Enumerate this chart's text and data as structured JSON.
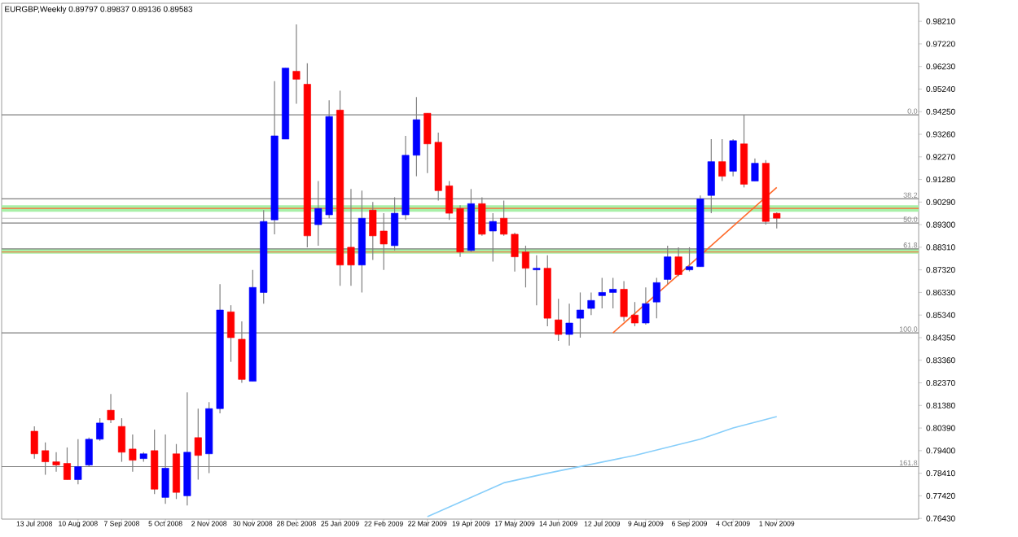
{
  "chart_data": {
    "type": "candlestick",
    "title": "EURGBP,Weekly  0.89797 0.89837 0.89136 0.89583",
    "x": [
      "2008-07-13",
      "2008-07-20",
      "2008-07-27",
      "2008-08-03",
      "2008-08-10",
      "2008-08-17",
      "2008-08-24",
      "2008-08-31",
      "2008-09-07",
      "2008-09-14",
      "2008-09-21",
      "2008-09-28",
      "2008-10-05",
      "2008-10-12",
      "2008-10-19",
      "2008-10-26",
      "2008-11-02",
      "2008-11-09",
      "2008-11-16",
      "2008-11-23",
      "2008-11-30",
      "2008-12-07",
      "2008-12-14",
      "2008-12-21",
      "2008-12-28",
      "2009-01-04",
      "2009-01-11",
      "2009-01-18",
      "2009-01-25",
      "2009-02-01",
      "2009-02-08",
      "2009-02-15",
      "2009-02-22",
      "2009-03-01",
      "2009-03-08",
      "2009-03-15",
      "2009-03-22",
      "2009-03-29",
      "2009-04-05",
      "2009-04-12",
      "2009-04-19",
      "2009-04-26",
      "2009-05-03",
      "2009-05-10",
      "2009-05-17",
      "2009-05-24",
      "2009-05-31",
      "2009-06-07",
      "2009-06-14",
      "2009-06-21",
      "2009-06-28",
      "2009-07-05",
      "2009-07-12",
      "2009-07-19",
      "2009-07-26",
      "2009-08-02",
      "2009-08-09",
      "2009-08-16",
      "2009-08-23",
      "2009-08-30",
      "2009-09-06",
      "2009-09-13",
      "2009-09-20",
      "2009-09-27",
      "2009-10-04",
      "2009-10-11",
      "2009-10-18",
      "2009-10-25",
      "2009-11-01"
    ],
    "ohlc": [
      [
        0.8025,
        0.8046,
        0.7905,
        0.7926
      ],
      [
        0.794,
        0.7976,
        0.7834,
        0.7891
      ],
      [
        0.7891,
        0.7933,
        0.7848,
        0.7877
      ],
      [
        0.7884,
        0.7954,
        0.7813,
        0.7813
      ],
      [
        0.7813,
        0.799,
        0.7792,
        0.787
      ],
      [
        0.7877,
        0.7997,
        0.787,
        0.799
      ],
      [
        0.799,
        0.8082,
        0.7983,
        0.8061
      ],
      [
        0.8117,
        0.8188,
        0.8061,
        0.8075
      ],
      [
        0.8046,
        0.8082,
        0.7891,
        0.7933
      ],
      [
        0.7947,
        0.8011,
        0.7848,
        0.7898
      ],
      [
        0.7905,
        0.7933,
        0.7891,
        0.7926
      ],
      [
        0.794,
        0.8032,
        0.775,
        0.7771
      ],
      [
        0.7735,
        0.8011,
        0.7707,
        0.7863
      ],
      [
        0.7926,
        0.7969,
        0.7728,
        0.7757
      ],
      [
        0.7742,
        0.8195,
        0.77,
        0.7933
      ],
      [
        0.7997,
        0.8124,
        0.7813,
        0.7919
      ],
      [
        0.7926,
        0.8152,
        0.7841,
        0.8124
      ],
      [
        0.8124,
        0.8669,
        0.8103,
        0.8556
      ],
      [
        0.8548,
        0.8577,
        0.8329,
        0.8435
      ],
      [
        0.8428,
        0.8506,
        0.8237,
        0.8252
      ],
      [
        0.8244,
        0.8732,
        0.8244,
        0.8655
      ],
      [
        0.8633,
        0.8994,
        0.8584,
        0.8944
      ],
      [
        0.8951,
        0.9559,
        0.8888,
        0.9319
      ],
      [
        0.9305,
        0.9616,
        0.9305,
        0.9616
      ],
      [
        0.9602,
        0.9807,
        0.946,
        0.9567
      ],
      [
        0.9545,
        0.9637,
        0.8831,
        0.8881
      ],
      [
        0.893,
        0.9121,
        0.8838,
        0.9001
      ],
      [
        0.8973,
        0.9475,
        0.8958,
        0.9404
      ],
      [
        0.9432,
        0.9517,
        0.8662,
        0.8753
      ],
      [
        0.8831,
        0.9086,
        0.8662,
        0.8753
      ],
      [
        0.8753,
        0.9079,
        0.8633,
        0.8958
      ],
      [
        0.8994,
        0.9029,
        0.8775,
        0.8881
      ],
      [
        0.8902,
        0.898,
        0.8732,
        0.8845
      ],
      [
        0.8838,
        0.905,
        0.8817,
        0.898
      ],
      [
        0.8973,
        0.9319,
        0.8951,
        0.9234
      ],
      [
        0.9234,
        0.9489,
        0.9142,
        0.939
      ],
      [
        0.9418,
        0.9418,
        0.9156,
        0.9284
      ],
      [
        0.9291,
        0.9333,
        0.9036,
        0.9079
      ],
      [
        0.91,
        0.9121,
        0.8951,
        0.898
      ],
      [
        0.9001,
        0.9015,
        0.8789,
        0.881
      ],
      [
        0.8817,
        0.9086,
        0.881,
        0.9022
      ],
      [
        0.9022,
        0.905,
        0.8881,
        0.8888
      ],
      [
        0.8902,
        0.898,
        0.8768,
        0.8944
      ],
      [
        0.8958,
        0.9036,
        0.8881,
        0.8888
      ],
      [
        0.8888,
        0.8895,
        0.8725,
        0.8789
      ],
      [
        0.881,
        0.8838,
        0.8655,
        0.8739
      ],
      [
        0.8732,
        0.8796,
        0.8577,
        0.8739
      ],
      [
        0.8739,
        0.8796,
        0.8485,
        0.852
      ],
      [
        0.8513,
        0.8605,
        0.8421,
        0.8449
      ],
      [
        0.8449,
        0.8584,
        0.84,
        0.8499
      ],
      [
        0.852,
        0.8633,
        0.8435,
        0.8556
      ],
      [
        0.8563,
        0.8633,
        0.8534,
        0.8598
      ],
      [
        0.8619,
        0.8697,
        0.8563,
        0.8633
      ],
      [
        0.8633,
        0.8697,
        0.8563,
        0.8647
      ],
      [
        0.8647,
        0.8683,
        0.8506,
        0.8527
      ],
      [
        0.8534,
        0.8591,
        0.8485,
        0.8499
      ],
      [
        0.8499,
        0.8655,
        0.8492,
        0.8584
      ],
      [
        0.8591,
        0.8697,
        0.852,
        0.8676
      ],
      [
        0.869,
        0.8838,
        0.8669,
        0.8789
      ],
      [
        0.8789,
        0.8831,
        0.8704,
        0.8711
      ],
      [
        0.8732,
        0.8831,
        0.8725,
        0.8746
      ],
      [
        0.8746,
        0.9058,
        0.8746,
        0.9043
      ],
      [
        0.9058,
        0.9305,
        0.898,
        0.9206
      ],
      [
        0.9206,
        0.9305,
        0.9121,
        0.9142
      ],
      [
        0.9164,
        0.9305,
        0.9142,
        0.9298
      ],
      [
        0.9284,
        0.9411,
        0.9093,
        0.9107
      ],
      [
        0.9121,
        0.922,
        0.9121,
        0.9199
      ],
      [
        0.9199,
        0.9213,
        0.893,
        0.8944
      ],
      [
        0.89797,
        0.89837,
        0.89136,
        0.89583
      ]
    ],
    "colors": [
      "#ff0000",
      "#ff0000",
      "#ff0000",
      "#ff0000",
      "#0000ff",
      "#0000ff",
      "#0000ff",
      "#ff0000",
      "#ff0000",
      "#ff0000",
      "#0000ff",
      "#ff0000",
      "#0000ff",
      "#ff0000",
      "#0000ff",
      "#ff0000",
      "#0000ff",
      "#0000ff",
      "#ff0000",
      "#ff0000",
      "#0000ff",
      "#0000ff",
      "#0000ff",
      "#0000ff",
      "#ff0000",
      "#ff0000",
      "#0000ff",
      "#0000ff",
      "#ff0000",
      "#ff0000",
      "#0000ff",
      "#ff0000",
      "#ff0000",
      "#0000ff",
      "#0000ff",
      "#0000ff",
      "#ff0000",
      "#ff0000",
      "#ff0000",
      "#ff0000",
      "#0000ff",
      "#ff0000",
      "#0000ff",
      "#ff0000",
      "#ff0000",
      "#ff0000",
      "#0000ff",
      "#ff0000",
      "#ff0000",
      "#0000ff",
      "#0000ff",
      "#0000ff",
      "#0000ff",
      "#0000ff",
      "#ff0000",
      "#ff0000",
      "#0000ff",
      "#0000ff",
      "#0000ff",
      "#ff0000",
      "#0000ff",
      "#0000ff",
      "#0000ff",
      "#ff0000",
      "#0000ff",
      "#ff0000",
      "#0000ff",
      "#ff0000",
      "#ff0000"
    ],
    "series": [
      {
        "type": "line",
        "color": "#87cefa",
        "x": [
          "2009-03-22",
          "2009-05-10",
          "2009-06-07",
          "2009-08-02",
          "2009-09-13",
          "2009-10-04",
          "2009-11-01"
        ],
        "values": [
          0.7651,
          0.7799,
          0.7841,
          0.7919,
          0.799,
          0.8039,
          0.8089
        ]
      },
      {
        "type": "line",
        "color": "#ff6a2a",
        "x": [
          "2009-07-19",
          "2009-11-01"
        ],
        "values": [
          0.8456,
          0.9093
        ]
      }
    ],
    "bands": [
      {
        "axis": "y",
        "from": 0.8987,
        "to": 0.9015,
        "color": "#a8f0a8"
      },
      {
        "axis": "y",
        "from": 0.8803,
        "to": 0.8824,
        "color": "#a8f0a8"
      }
    ],
    "ref_lines": [
      {
        "axis": "y",
        "value": 0.9001,
        "color": "#ff6633"
      },
      {
        "axis": "y",
        "value": 0.881,
        "color": "#ff6633"
      },
      {
        "axis": "y",
        "value": 0.8958,
        "color": "#c0c0c0"
      },
      {
        "axis": "y",
        "value": 0.9411,
        "color": "#808080"
      },
      {
        "axis": "y",
        "value": 0.9043,
        "color": "#808080"
      },
      {
        "axis": "y",
        "value": 0.8937,
        "color": "#808080"
      },
      {
        "axis": "y",
        "value": 0.8824,
        "color": "#808080"
      },
      {
        "axis": "y",
        "value": 0.8456,
        "color": "#808080"
      },
      {
        "axis": "y",
        "value": 0.787,
        "color": "#808080"
      }
    ],
    "annotations": [
      {
        "text": "0.0",
        "x": "2010-01-31",
        "y": 0.9411
      },
      {
        "text": "38.2",
        "x": "2010-01-31",
        "y": 0.9043
      },
      {
        "text": "50.0",
        "x": "2010-01-31",
        "y": 0.8937
      },
      {
        "text": "61.8",
        "x": "2010-01-31",
        "y": 0.8824
      },
      {
        "text": "100.0",
        "x": "2010-01-31",
        "y": 0.8456
      },
      {
        "text": "161.8",
        "x": "2010-01-31",
        "y": 0.787
      }
    ],
    "xlim": [
      "2008-06-22",
      "2010-01-31"
    ],
    "xticks": [
      {
        "value": "2008-07-13",
        "label": "13 Jul 2008"
      },
      {
        "value": "2008-08-10",
        "label": "10 Aug 2008"
      },
      {
        "value": "2008-09-07",
        "label": "7 Sep 2008"
      },
      {
        "value": "2008-10-05",
        "label": "5 Oct 2008"
      },
      {
        "value": "2008-11-02",
        "label": "2 Nov 2008"
      },
      {
        "value": "2008-11-30",
        "label": "30 Nov 2008"
      },
      {
        "value": "2008-12-28",
        "label": "28 Dec 2008"
      },
      {
        "value": "2009-01-25",
        "label": "25 Jan 2009"
      },
      {
        "value": "2009-02-22",
        "label": "22 Feb 2009"
      },
      {
        "value": "2009-03-22",
        "label": "22 Mar 2009"
      },
      {
        "value": "2009-04-19",
        "label": "19 Apr 2009"
      },
      {
        "value": "2009-05-17",
        "label": "17 May 2009"
      },
      {
        "value": "2009-06-14",
        "label": "14 Jun 2009"
      },
      {
        "value": "2009-07-12",
        "label": "12 Jul 2009"
      },
      {
        "value": "2009-08-09",
        "label": "9 Aug 2009"
      },
      {
        "value": "2009-09-06",
        "label": "6 Sep 2009"
      },
      {
        "value": "2009-10-04",
        "label": "4 Oct 2009"
      },
      {
        "value": "2009-11-01",
        "label": "1 Nov 2009"
      }
    ],
    "ylim": [
      0.764,
      0.99
    ],
    "yticks": [
      {
        "value": 0.7643,
        "label": "0.76430"
      },
      {
        "value": 0.7742,
        "label": "0.77420"
      },
      {
        "value": 0.7841,
        "label": "0.78410"
      },
      {
        "value": 0.794,
        "label": "0.79400"
      },
      {
        "value": 0.8039,
        "label": "0.80390"
      },
      {
        "value": 0.8138,
        "label": "0.81380"
      },
      {
        "value": 0.8237,
        "label": "0.82370"
      },
      {
        "value": 0.8336,
        "label": "0.83360"
      },
      {
        "value": 0.8435,
        "label": "0.84350"
      },
      {
        "value": 0.8534,
        "label": "0.85340"
      },
      {
        "value": 0.8633,
        "label": "0.86330"
      },
      {
        "value": 0.8732,
        "label": "0.87320"
      },
      {
        "value": 0.8831,
        "label": "0.88310"
      },
      {
        "value": 0.893,
        "label": "0.89300"
      },
      {
        "value": 0.9029,
        "label": "0.90290"
      },
      {
        "value": 0.9128,
        "label": "0.91280"
      },
      {
        "value": 0.9227,
        "label": "0.92270"
      },
      {
        "value": 0.9326,
        "label": "0.93260"
      },
      {
        "value": 0.9425,
        "label": "0.94250"
      },
      {
        "value": 0.9524,
        "label": "0.95240"
      },
      {
        "value": 0.9623,
        "label": "0.96230"
      },
      {
        "value": 0.9722,
        "label": "0.97220"
      },
      {
        "value": 0.9821,
        "label": "0.98210"
      }
    ]
  }
}
